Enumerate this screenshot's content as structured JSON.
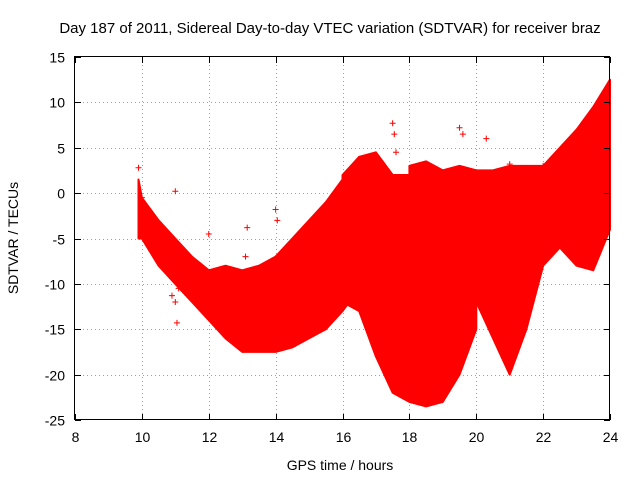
{
  "chart_data": {
    "type": "scatter",
    "title": "Day 187 of 2011, Sidereal Day-to-day VTEC variation (SDTVAR) for receiver braz",
    "xlabel": "GPS time / hours",
    "ylabel": "SDTVAR / TECUs",
    "xlim": [
      8,
      24
    ],
    "ylim": [
      -25,
      15
    ],
    "xticks": [
      8,
      10,
      12,
      14,
      16,
      18,
      20,
      22,
      24
    ],
    "yticks": [
      -25,
      -20,
      -15,
      -10,
      -5,
      0,
      5,
      10,
      15
    ],
    "grid": true,
    "marker": "+",
    "colors": {
      "series": "#ff0000"
    },
    "series": [
      {
        "bands": [
          {
            "x": [
              9.9,
              10.0,
              10.5,
              11.0,
              11.5,
              12.0,
              12.5,
              13.0,
              13.5,
              14.0,
              14.5,
              15.0,
              15.5,
              16.0,
              16.2,
              16.5
            ],
            "upper": [
              1.5,
              -0.5,
              -3.0,
              -5.0,
              -7.0,
              -8.5,
              -8.0,
              -8.5,
              -8.0,
              -7.0,
              -5.0,
              -3.0,
              -1.0,
              1.5,
              2.0,
              2.5
            ],
            "lower": [
              -5.0,
              -5.0,
              -8.0,
              -10.0,
              -12.0,
              -14.0,
              -16.0,
              -17.5,
              -17.5,
              -17.5,
              -17.0,
              -16.0,
              -15.0,
              -13.0,
              -12.0,
              -12.0
            ]
          },
          {
            "x": [
              16.0,
              16.5,
              17.0,
              17.5,
              18.0,
              18.5,
              19.0,
              19.5,
              20.0
            ],
            "upper": [
              2.0,
              4.0,
              4.5,
              2.0,
              2.0,
              2.0,
              2.0,
              2.0,
              2.0
            ],
            "lower": [
              -12.0,
              -13.0,
              -18.0,
              -22.0,
              -23.0,
              -23.5,
              -23.0,
              -20.0,
              -15.0
            ]
          },
          {
            "x": [
              18.0,
              18.5,
              19.0,
              19.5,
              20.0,
              20.5,
              21.0,
              21.5,
              22.0,
              22.5,
              23.0,
              23.5,
              24.0
            ],
            "upper": [
              3.0,
              3.5,
              2.5,
              3.0,
              2.5,
              2.5,
              3.0,
              3.0,
              3.0,
              5.0,
              7.0,
              9.5,
              12.5
            ],
            "lower": [
              -10.0,
              -12.0,
              -10.0,
              -10.0,
              -12.0,
              -16.0,
              -20.0,
              -15.0,
              -8.0,
              -6.0,
              -8.0,
              -8.5,
              -4.0
            ]
          }
        ],
        "outliers": [
          [
            9.9,
            2.8
          ],
          [
            10.0,
            -0.5
          ],
          [
            10.9,
            -11.3
          ],
          [
            11.0,
            -12.0
          ],
          [
            11.05,
            -14.3
          ],
          [
            11.0,
            0.2
          ],
          [
            11.1,
            -10.5
          ],
          [
            12.0,
            -13.5
          ],
          [
            12.0,
            -4.5
          ],
          [
            13.1,
            -7.0
          ],
          [
            13.15,
            -3.8
          ],
          [
            14.0,
            -1.8
          ],
          [
            14.05,
            -3.0
          ],
          [
            17.5,
            7.7
          ],
          [
            17.55,
            6.5
          ],
          [
            17.6,
            4.5
          ],
          [
            19.5,
            7.2
          ],
          [
            19.6,
            6.5
          ],
          [
            20.3,
            6.0
          ],
          [
            21.0,
            3.2
          ],
          [
            22.0,
            3.0
          ]
        ]
      }
    ]
  }
}
